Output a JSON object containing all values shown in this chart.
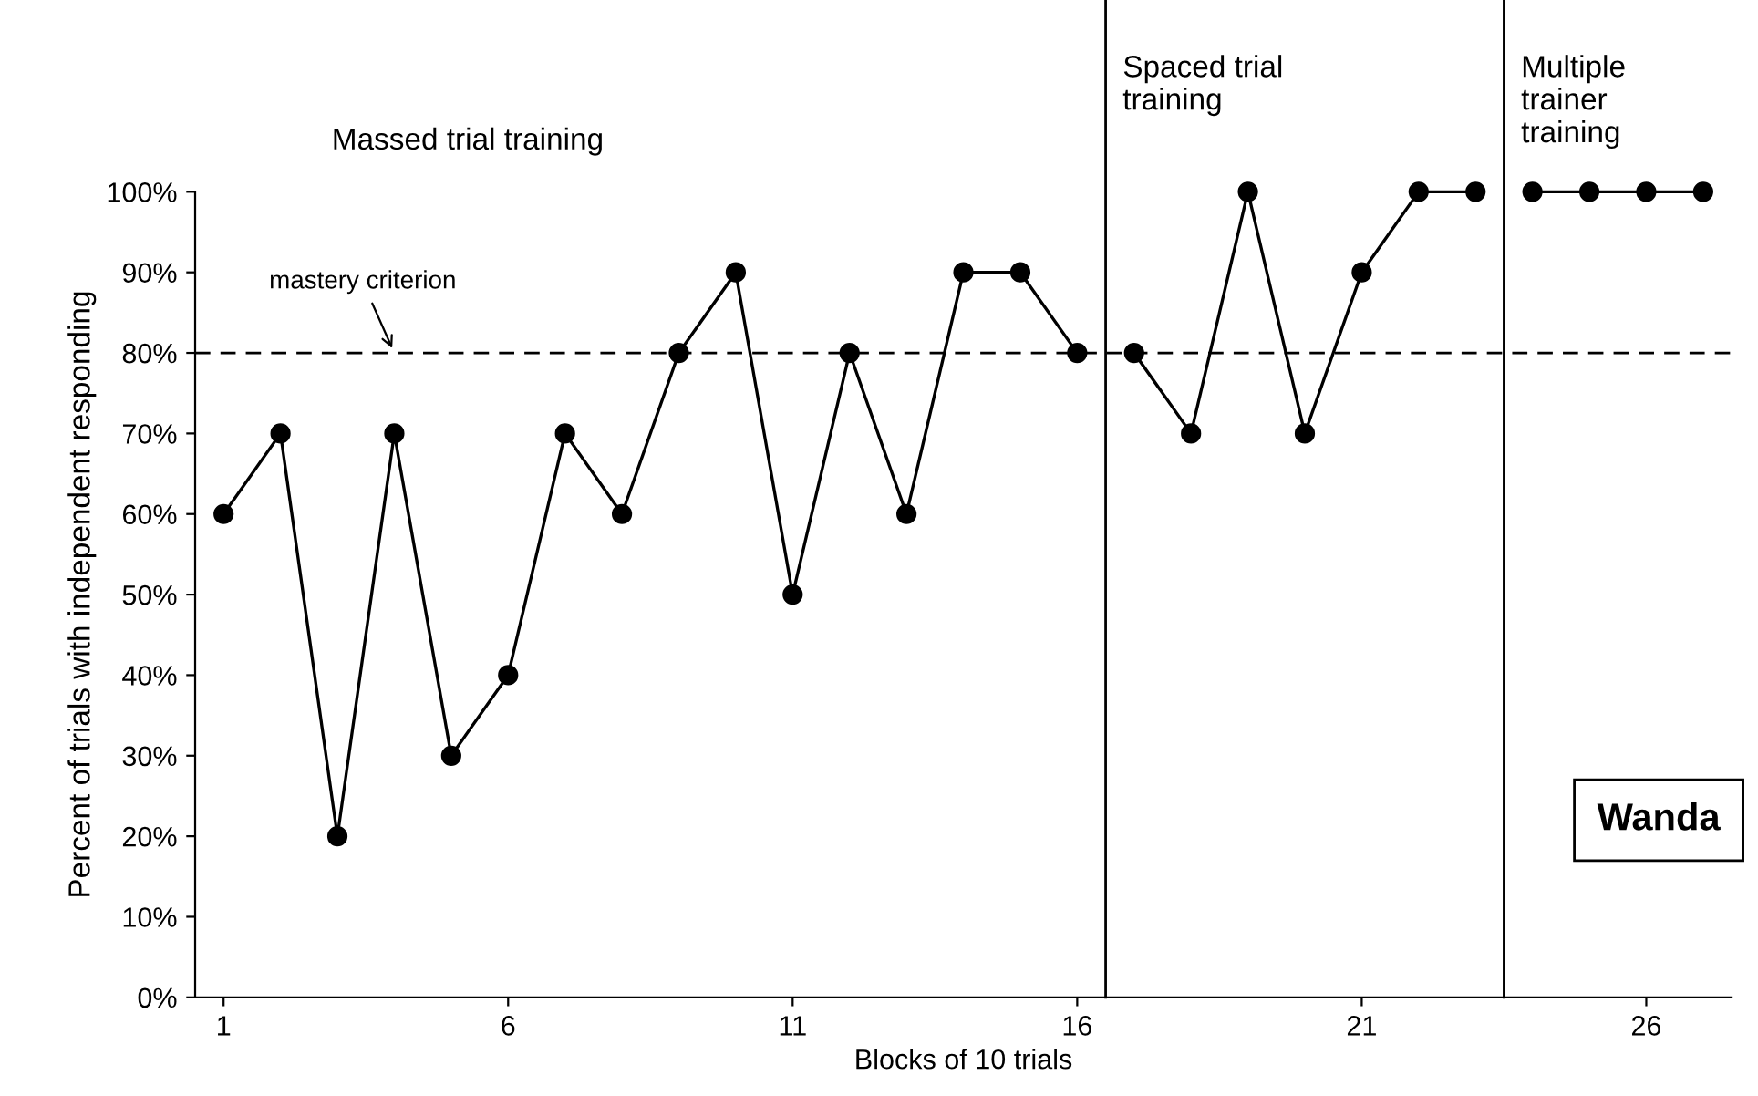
{
  "chart_data": {
    "type": "line",
    "xlabel": "Blocks of 10 trials",
    "ylabel": "Percent of trials with independent responding",
    "series": [
      {
        "color": "#000000",
        "x": [
          1,
          2,
          3,
          4,
          5,
          6,
          7,
          8,
          9,
          10,
          11,
          12,
          13,
          14,
          15,
          16
        ],
        "values": [
          60,
          70,
          20,
          70,
          30,
          40,
          70,
          60,
          80,
          90,
          50,
          80,
          60,
          90,
          90,
          80
        ]
      },
      {
        "color": "#000000",
        "x": [
          17,
          18,
          19,
          20,
          21,
          22,
          23
        ],
        "values": [
          80,
          70,
          100,
          70,
          90,
          100,
          100
        ]
      },
      {
        "color": "#000000",
        "x": [
          24,
          25,
          26,
          27
        ],
        "values": [
          100,
          100,
          100,
          100
        ]
      }
    ],
    "xlim": [
      0.5,
      27.5
    ],
    "xticks": [
      1,
      6,
      11,
      16,
      21,
      26
    ],
    "ylim": [
      0,
      100
    ],
    "yticks": [
      {
        "value": 0,
        "label": "0%"
      },
      {
        "value": 10,
        "label": "10%"
      },
      {
        "value": 20,
        "label": "20%"
      },
      {
        "value": 30,
        "label": "30%"
      },
      {
        "value": 40,
        "label": "40%"
      },
      {
        "value": 50,
        "label": "50%"
      },
      {
        "value": 60,
        "label": "60%"
      },
      {
        "value": 70,
        "label": "70%"
      },
      {
        "value": 80,
        "label": "80%"
      },
      {
        "value": 90,
        "label": "90%"
      },
      {
        "value": 100,
        "label": "100%"
      }
    ],
    "ref_lines": [
      {
        "axis": "y",
        "value": 80,
        "line_style": "dashed",
        "color": "#000000"
      },
      {
        "axis": "x",
        "value": 16.5,
        "line_style": "solid",
        "color": "#000000"
      },
      {
        "axis": "x",
        "value": 23.5,
        "line_style": "solid",
        "color": "#000000"
      }
    ],
    "annotations": [
      {
        "text": "mastery criterion",
        "x": 4,
        "y": 80
      },
      "Massed trial training",
      "Spaced trial\ntraining",
      "Multiple\ntrainer\ntraining",
      "Wanda"
    ],
    "marker": "circle",
    "line_style": "solid",
    "grid": false,
    "legend": false
  }
}
